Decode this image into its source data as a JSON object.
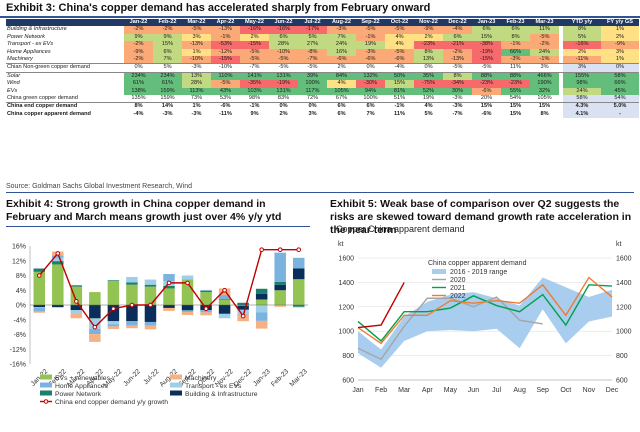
{
  "exhibit3": {
    "title": "Exhibit 3: China's copper demand has accelerated sharply from February onward",
    "source": "Source: Goldman Sachs Global Investment Research, Wind",
    "columns": [
      "Jan-22",
      "Feb-22",
      "Mar-22",
      "Apr-22",
      "May-22",
      "Jun-22",
      "Jul-22",
      "Aug-22",
      "Sep-22",
      "Oct-22",
      "Nov-22",
      "Dec-22",
      "Jan-23",
      "Feb-23",
      "Mar-23",
      "YTD y/y",
      "FY y/y GS"
    ],
    "rows": [
      {
        "label": "Building & Infrastructure",
        "bold": false,
        "values": [
          "-2%",
          "-2%",
          "-5%",
          "-13%",
          "-16%",
          "-16%",
          "-17%",
          "-3%",
          "-5%",
          "-5%",
          "-9%",
          "-4%",
          "6%",
          "6%",
          "11%",
          "8%",
          "1%"
        ]
      },
      {
        "label": "Power Network",
        "bold": false,
        "values": [
          "9%",
          "9%",
          "3%",
          "-1%",
          "2%",
          "6%",
          "5%",
          "7%",
          "-1%",
          "4%",
          "2%",
          "6%",
          "15%",
          "8%",
          "-5%",
          "5%",
          "2%"
        ]
      },
      {
        "label": "Transport - ex EVs",
        "bold": false,
        "values": [
          "-2%",
          "15%",
          "-13%",
          "-53%",
          "-15%",
          "28%",
          "27%",
          "24%",
          "19%",
          "4%",
          "-23%",
          "-21%",
          "-38%",
          "-1%",
          "-2%",
          "-16%",
          "-9%"
        ]
      },
      {
        "label": "Home Appliances",
        "bold": false,
        "values": [
          "-9%",
          "6%",
          "1%",
          "-12%",
          "-5%",
          "-10%",
          "-8%",
          "16%",
          "-3%",
          "-5%",
          "8%",
          "-2%",
          "-19%",
          "66%",
          "24%",
          "2%",
          "3%"
        ]
      },
      {
        "label": "Machinery",
        "bold": false,
        "values": [
          "-2%",
          "7%",
          "-10%",
          "-15%",
          "-5%",
          "-5%",
          "-7%",
          "-6%",
          "-6%",
          "-6%",
          "13%",
          "-13%",
          "-15%",
          "-3%",
          "-1%",
          "-11%",
          "1%"
        ]
      },
      {
        "label": "Chian Non-green copper demand",
        "bold": false,
        "sep": true,
        "values": [
          "0%",
          "5%",
          "-3%",
          "-10%",
          "-7%",
          "-5%",
          "-5%",
          "2%",
          "0%",
          "-4%",
          "0%",
          "-5%",
          "-5%",
          "11%",
          "3%",
          "3%",
          "0%"
        ]
      },
      {
        "label": "Solar",
        "bold": false,
        "sep": true,
        "values": [
          "234%",
          "234%",
          "13%",
          "110%",
          "141%",
          "131%",
          "39%",
          "84%",
          "132%",
          "50%",
          "35%",
          "8%",
          "88%",
          "88%",
          "466%",
          "155%",
          "58%"
        ]
      },
      {
        "label": "Wind",
        "bold": false,
        "values": [
          "61%",
          "61%",
          "28%",
          "-5%",
          "-35%",
          "-19%",
          "100%",
          "4%",
          "-30%",
          "15%",
          "-75%",
          "-34%",
          "-23%",
          "-23%",
          "190%",
          "98%",
          "66%"
        ]
      },
      {
        "label": "EVs",
        "bold": false,
        "values": [
          "138%",
          "159%",
          "113%",
          "43%",
          "103%",
          "131%",
          "117%",
          "105%",
          "94%",
          "81%",
          "52%",
          "30%",
          "-6%",
          "55%",
          "32%",
          "24%",
          "45%"
        ]
      },
      {
        "label": "China green copper demand",
        "bold": false,
        "values": [
          "135%",
          "159%",
          "73%",
          "53%",
          "98%",
          "83%",
          "72%",
          "67%",
          "100%",
          "51%",
          "19%",
          "-3%",
          "20%",
          "54%",
          "105%",
          "58%",
          "54%"
        ]
      },
      {
        "label": "China end copper demand",
        "bold": true,
        "sep": true,
        "values": [
          "8%",
          "14%",
          "1%",
          "-6%",
          "-1%",
          "0%",
          "0%",
          "6%",
          "6%",
          "-1%",
          "4%",
          "-3%",
          "15%",
          "15%",
          "15%",
          "4.3%",
          "5.0%"
        ]
      },
      {
        "label": "China copper apparent demand",
        "bold": true,
        "values": [
          "-4%",
          "-3%",
          "-3%",
          "-11%",
          "9%",
          "2%",
          "3%",
          "6%",
          "7%",
          "11%",
          "5%",
          "-7%",
          "-6%",
          "15%",
          "8%",
          "4.1%",
          "-"
        ]
      }
    ],
    "colors": {
      "header": "#1f3864",
      "neg_strong": "#f8696b",
      "neg_mid": "#fbaa77",
      "neutral": "#ffe084",
      "pos_mid": "#c1da81",
      "pos_strong": "#63be7b",
      "plain": "#ffffff",
      "subtotal": "#d9e1f2"
    }
  },
  "exhibit4": {
    "title": "Exhibit 4: Strong growth in China copper demand in February and March means growth just over 4% y/y ytd"
  },
  "exhibit5": {
    "title": "Exhibit 5: Weak base of comparison over Q2 suggests the risks are skewed toward demand growth rate acceleration in the near term",
    "subtitle": "Copper China apparent demand"
  },
  "chart_data": [
    {
      "type": "bar",
      "stacked": true,
      "title": "",
      "ylim": [
        -16,
        16
      ],
      "yticks": [
        "16%",
        "12%",
        "8%",
        "4%",
        "0%",
        "-4%",
        "-8%",
        "-12%",
        "-16%"
      ],
      "categories": [
        "Jan-22",
        "Feb-22",
        "Mar-22",
        "Apr-22",
        "May-22",
        "Jun-22",
        "Jul-22",
        "Aug-22",
        "Sep-22",
        "Oct-22",
        "Nov-22",
        "Dec-22",
        "Jan-23",
        "Feb-23",
        "Mar-23"
      ],
      "xtick_labels": [
        "Jan-22",
        "Feb-22",
        "Mar-22",
        "Apr-22",
        "May-22",
        "Jun-22",
        "Jul-22",
        "Aug-22",
        "Sep-22",
        "Oct-22",
        "Nov-22",
        "Dec-22",
        "Jan-23",
        "Feb-23",
        "Mar-23"
      ],
      "series": [
        {
          "name": "Building & Infrastructure",
          "color": "#0b2d5a",
          "values": [
            -0.6,
            -0.6,
            -1.4,
            -3.6,
            -4.4,
            -4.4,
            -4.6,
            -0.8,
            -1.4,
            -1.4,
            -2.4,
            -1.1,
            1.5,
            1.5,
            2.9
          ]
        },
        {
          "name": "Power Network",
          "color": "#1a7f6e",
          "values": [
            0.9,
            0.9,
            0.3,
            -0.1,
            0.2,
            0.6,
            0.5,
            0.7,
            -0.1,
            0.4,
            0.2,
            0.6,
            1.4,
            0.8,
            -0.5
          ]
        },
        {
          "name": "Transport - ex EVs",
          "color": "#9fcfe8",
          "values": [
            -0.1,
            0.9,
            -0.8,
            -2.8,
            -0.8,
            1.5,
            1.4,
            1.3,
            1.0,
            0.2,
            -1.2,
            -1.1,
            -2.0,
            -0.1,
            -0.1
          ]
        },
        {
          "name": "Home Appliances",
          "color": "#7ab3e0",
          "values": [
            -1.1,
            0.7,
            0.1,
            -1.4,
            -0.6,
            -1.2,
            -1.0,
            1.9,
            -0.4,
            -0.6,
            1.0,
            -0.2,
            -2.3,
            7.9,
            2.9
          ]
        },
        {
          "name": "Machinery",
          "color": "#f5b183",
          "values": [
            -0.3,
            1.0,
            -1.4,
            -2.1,
            -0.7,
            -0.7,
            -1.0,
            -0.8,
            -0.8,
            -0.8,
            1.8,
            -1.8,
            -2.1,
            -0.4,
            -0.1
          ]
        },
        {
          "name": "EVs + renewables",
          "color": "#92c353",
          "values": [
            9.0,
            11.0,
            5.0,
            3.5,
            6.5,
            5.5,
            5.0,
            4.5,
            7.0,
            3.5,
            1.5,
            -0.2,
            1.5,
            4.0,
            7.0
          ]
        }
      ],
      "line": {
        "name": "China end copper demand y/y growth",
        "color": "#c00000",
        "values": [
          8,
          14,
          1,
          -6,
          -1,
          0,
          0,
          6,
          6,
          -1,
          4,
          -3,
          15,
          15,
          15
        ]
      },
      "legend": [
        "EVs + renewables",
        "Machinery",
        "Home Appliances",
        "Transport - ex EVs",
        "Power Network",
        "Building & Infrastructure",
        "China end copper demand y/y growth"
      ]
    },
    {
      "type": "line",
      "title": "China copper apparent demand",
      "ylabel_left": "kt",
      "ylabel_right": "kt",
      "ylim": [
        600,
        1600
      ],
      "yticks": [
        "1600",
        "1400",
        "1200",
        "1000",
        "800",
        "600"
      ],
      "categories": [
        "Jan",
        "Feb",
        "Mar",
        "Apr",
        "May",
        "Jun",
        "Jul",
        "Aug",
        "Sep",
        "Oct",
        "Nov",
        "Dec"
      ],
      "range_band": {
        "name": "2016 - 2019 range",
        "color": "#a8cdee",
        "low": [
          820,
          700,
          920,
          1000,
          1010,
          1000,
          1020,
          860,
          1180,
          900,
          1080,
          1120
        ],
        "high": [
          1000,
          850,
          1120,
          1240,
          1300,
          1320,
          1270,
          1210,
          1440,
          1360,
          1280,
          1340
        ]
      },
      "series": [
        {
          "name": "2020",
          "color": "#a5a5a5",
          "values": [
            860,
            770,
            1040,
            1270,
            1270,
            1200,
            1280,
            1090,
            1060,
            null,
            null,
            null
          ]
        },
        {
          "name": "2021",
          "color": "#00a050",
          "values": [
            1080,
            920,
            1160,
            1160,
            1190,
            1290,
            1210,
            1160,
            1300,
            1050,
            1380,
            1370
          ]
        },
        {
          "name": "2022",
          "color": "#ed7d31",
          "values": [
            1030,
            900,
            1130,
            1130,
            1250,
            1230,
            1250,
            1230,
            1380,
            1130,
            1440,
            1280
          ]
        },
        {
          "name": "2023",
          "color": "#c00000",
          "values": [
            1030,
            1050,
            1400,
            null,
            null,
            null,
            null,
            null,
            null,
            null,
            null,
            null
          ]
        }
      ],
      "legend": [
        "2016 - 2019 range",
        "2020",
        "2021",
        "2022"
      ]
    }
  ]
}
